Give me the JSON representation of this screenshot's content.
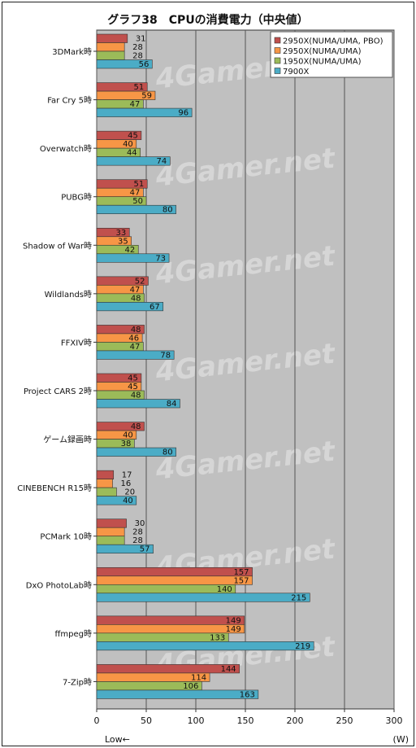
{
  "chart_data": {
    "type": "bar",
    "orientation": "horizontal",
    "title": "グラフ38　CPUの消費電力（中央値）",
    "categories": [
      "3DMark時",
      "Far Cry 5時",
      "Overwatch時",
      "PUBG時",
      "Shadow of War時",
      "Wildlands時",
      "FFXIV時",
      "Project CARS 2時",
      "ゲーム録画時",
      "CINEBENCH R15時",
      "PCMark 10時",
      "DxO PhotoLab時",
      "ffmpeg時",
      "7-Zip時"
    ],
    "series": [
      {
        "name": "2950X(NUMA/UMA, PBO)",
        "color": "#c0504d",
        "values": [
          31,
          51,
          45,
          51,
          33,
          52,
          48,
          45,
          48,
          17,
          30,
          157,
          149,
          144
        ]
      },
      {
        "name": "2950X(NUMA/UMA)",
        "color": "#f79646",
        "values": [
          28,
          59,
          40,
          47,
          35,
          47,
          46,
          45,
          40,
          16,
          28,
          157,
          149,
          114
        ]
      },
      {
        "name": "1950X(NUMA/UMA)",
        "color": "#9bbb59",
        "values": [
          28,
          47,
          44,
          50,
          42,
          48,
          47,
          48,
          38,
          20,
          28,
          140,
          133,
          106
        ]
      },
      {
        "name": "7900X",
        "color": "#4bacc6",
        "values": [
          56,
          96,
          74,
          80,
          73,
          67,
          78,
          84,
          80,
          40,
          57,
          215,
          219,
          163
        ]
      }
    ],
    "xlim": [
      0,
      300
    ],
    "xticks": [
      0,
      50,
      100,
      150,
      200,
      250,
      300
    ],
    "xlabel_left": "Low←",
    "xlabel_unit": "(W)",
    "grid": "vertical",
    "legend_position": "top-right",
    "plot_background": "#c0c0c0",
    "watermark": "4Gamer.net"
  }
}
